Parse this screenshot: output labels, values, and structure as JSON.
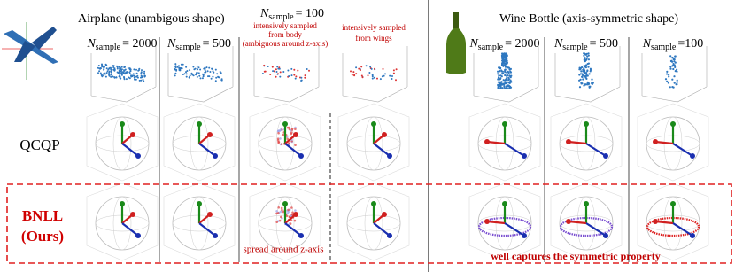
{
  "left_group": {
    "title": "Airplane (unambigous shape)"
  },
  "right_group": {
    "title": "Wine Bottle (axis-symmetric shape)"
  },
  "headers": [
    {
      "symbol": "N",
      "subscript": "sample",
      "value": "= 2000"
    },
    {
      "symbol": "N",
      "subscript": "sample",
      "value": "= 500"
    },
    {
      "symbol": "N",
      "subscript": "sample",
      "value": "= 100"
    },
    {
      "symbol": "N",
      "subscript": "sample",
      "value": "= 2000"
    },
    {
      "symbol": "N",
      "subscript": "sample",
      "value": "= 500"
    },
    {
      "symbol": "N",
      "subscript": "sample",
      "value": "=100"
    }
  ],
  "annotations": {
    "body": [
      "intensively sampled",
      "from body",
      "(ambiguous around z-axis)"
    ],
    "wings": [
      "intensively sampled",
      "from wings"
    ],
    "spread": "spread around z-axis",
    "symmetric": "well captures the symmetric property"
  },
  "rows": [
    {
      "label": "QCQP"
    },
    {
      "label": "BNLL",
      "sublabel": "(Ours)"
    }
  ]
}
